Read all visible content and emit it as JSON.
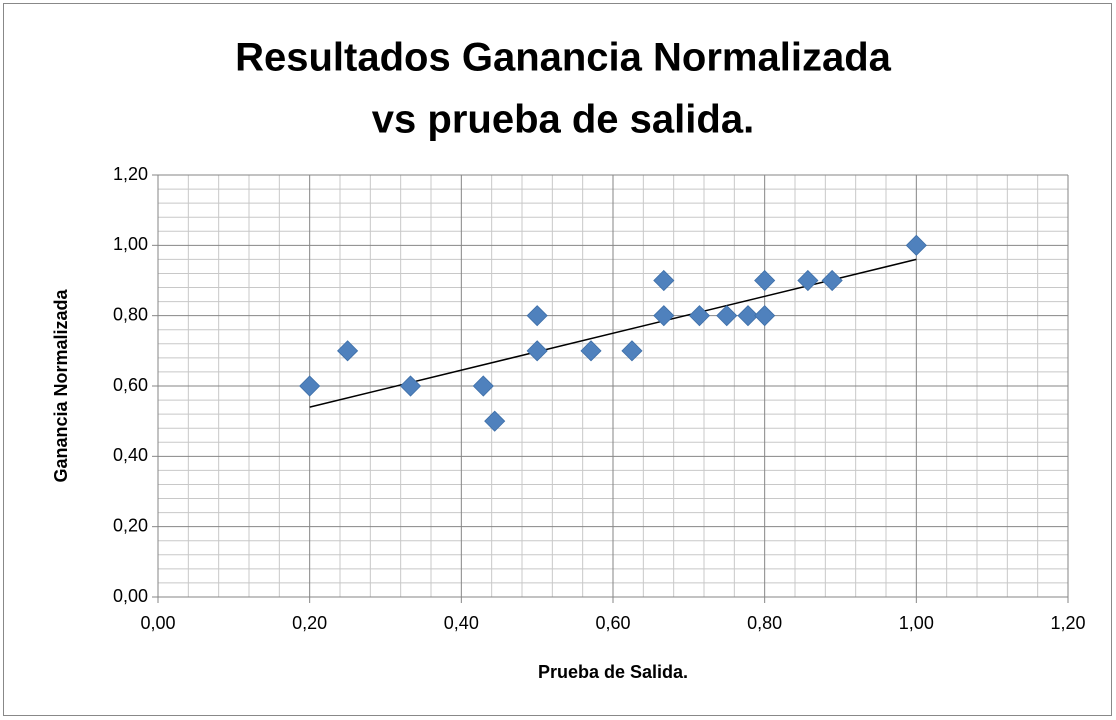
{
  "chart_data": {
    "type": "scatter",
    "title": [
      "Resultados Ganancia Normalizada",
      "vs prueba de  salida."
    ],
    "x_label": "Prueba de Salida.",
    "y_label": "Ganancia Normalizada",
    "series": [
      {
        "color": "#4f81bd",
        "x": [
          0.2,
          0.25,
          0.333,
          0.429,
          0.444,
          0.5,
          0.5,
          0.571,
          0.625,
          0.667,
          0.667,
          0.714,
          0.75,
          0.778,
          0.8,
          0.8,
          0.857,
          0.889,
          1.0
        ],
        "values": [
          0.6,
          0.7,
          0.6,
          0.6,
          0.5,
          0.8,
          0.7,
          0.7,
          0.7,
          0.9,
          0.8,
          0.8,
          0.8,
          0.8,
          0.9,
          0.8,
          0.9,
          0.9,
          1.0
        ]
      }
    ],
    "trendline": {
      "color": "#000000",
      "x": [
        0.2,
        1.0
      ],
      "values": [
        0.54,
        0.96
      ]
    },
    "xlim": [
      0,
      1.2
    ],
    "ylim": [
      0,
      1.2
    ],
    "xticks": [
      {
        "value": 0,
        "label": "0,00"
      },
      {
        "value": 0.2,
        "label": "0,20"
      },
      {
        "value": 0.4,
        "label": "0,40"
      },
      {
        "value": 0.6,
        "label": "0,60"
      },
      {
        "value": 0.8,
        "label": "0,80"
      },
      {
        "value": 1.0,
        "label": "1,00"
      },
      {
        "value": 1.2,
        "label": "1,20"
      }
    ],
    "yticks": [
      {
        "value": 0,
        "label": "0,00"
      },
      {
        "value": 0.2,
        "label": "0,20"
      },
      {
        "value": 0.4,
        "label": "0,40"
      },
      {
        "value": 0.6,
        "label": "0,60"
      },
      {
        "value": 0.8,
        "label": "0,80"
      },
      {
        "value": 1.0,
        "label": "1,00"
      },
      {
        "value": 1.2,
        "label": "1,20"
      }
    ],
    "grid": true,
    "minor_grid": true
  }
}
